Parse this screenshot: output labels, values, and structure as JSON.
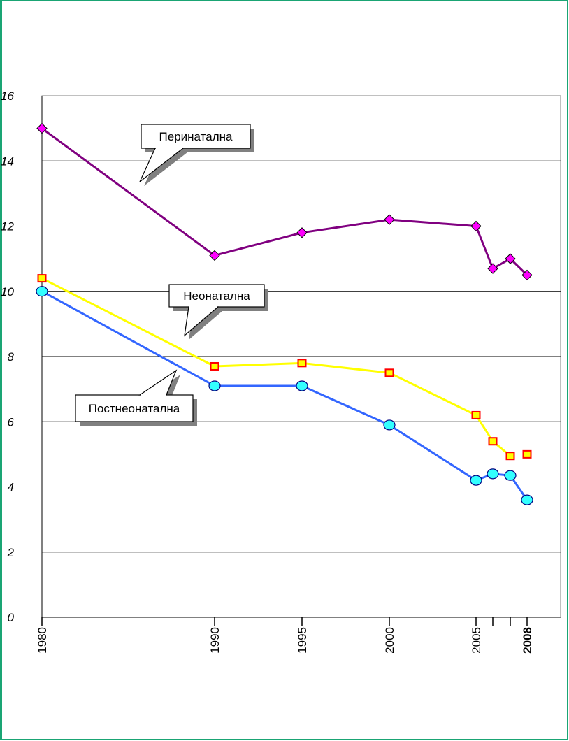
{
  "chart_data": {
    "type": "line",
    "x": [
      1980,
      1990,
      1995,
      2000,
      2005,
      2006,
      2007,
      2008
    ],
    "x_tick_labels": [
      "1980",
      "1990",
      "1995",
      "2000",
      "2005",
      "",
      "",
      "2008"
    ],
    "x_bold_label": "2008",
    "ylim": [
      0,
      16
    ],
    "y_ticks": [
      0,
      2,
      4,
      6,
      8,
      10,
      12,
      14,
      16
    ],
    "grid": true,
    "series": [
      {
        "name": "Перинатална",
        "values": [
          15.0,
          11.1,
          11.8,
          12.2,
          12.0,
          10.7,
          11.0,
          10.5
        ],
        "color": "#800080",
        "marker": "diamond",
        "marker_fill": "#ff00ff",
        "connect": true
      },
      {
        "name": "Неонатална",
        "values": [
          10.4,
          7.7,
          7.8,
          7.5,
          6.2,
          5.4,
          4.95,
          5.0
        ],
        "color": "#ffff00",
        "marker": "square",
        "marker_fill": "#ffff00",
        "marker_stroke": "#ff0000",
        "connect": true,
        "connect_last": false
      },
      {
        "name": "Постнеонатална",
        "values": [
          10.0,
          7.1,
          7.1,
          5.9,
          4.2,
          4.4,
          4.35,
          3.6
        ],
        "color": "#3366ff",
        "marker": "circle",
        "marker_fill": "#33ffff",
        "connect": true
      }
    ],
    "callouts": [
      {
        "series": "Перинатална",
        "label": "Перинатална"
      },
      {
        "series": "Неонатална",
        "label": "Неонатална"
      },
      {
        "series": "Постнеонатална",
        "label": "Постнеонатална"
      }
    ]
  }
}
